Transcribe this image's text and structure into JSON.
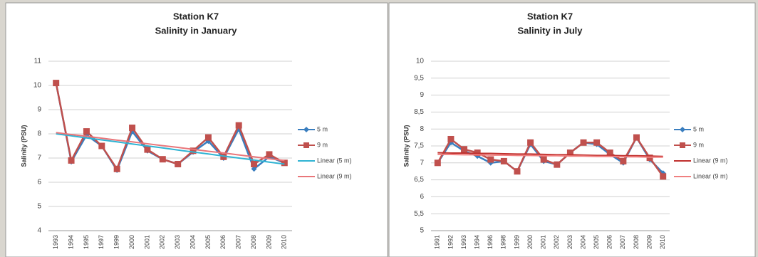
{
  "chart_data": [
    {
      "type": "line",
      "title": "Station K7",
      "subtitle": "Salinity in January",
      "y_label": "Salinity (PSU)",
      "categories": [
        "1993",
        "1994",
        "1995",
        "1997",
        "1999",
        "2000",
        "2001",
        "2002",
        "2003",
        "2004",
        "2005",
        "2006",
        "2007",
        "2008",
        "2009",
        "2010"
      ],
      "ylim": [
        4,
        11
      ],
      "yticks": [
        4,
        5,
        6,
        7,
        8,
        9,
        10,
        11
      ],
      "grid": true,
      "series": [
        {
          "name": "5 m",
          "color": "#3a7ebf",
          "marker": "diamond",
          "values": [
            10.1,
            6.85,
            7.95,
            7.5,
            6.5,
            8.1,
            7.3,
            6.95,
            6.75,
            7.25,
            7.7,
            7.0,
            8.2,
            6.55,
            7.05,
            6.8
          ]
        },
        {
          "name": "9 m",
          "color": "#c0504d",
          "marker": "square",
          "values": [
            10.1,
            6.9,
            8.1,
            7.5,
            6.55,
            8.25,
            7.35,
            6.95,
            6.75,
            7.3,
            7.85,
            7.05,
            8.35,
            6.75,
            7.15,
            6.8
          ]
        },
        {
          "name": "Linear (5 m)",
          "color": "#2fb3d3",
          "values": [
            8.0,
            7.92,
            7.83,
            7.75,
            7.67,
            7.58,
            7.5,
            7.42,
            7.33,
            7.25,
            7.17,
            7.08,
            7.0,
            6.92,
            6.83,
            6.75
          ]
        },
        {
          "name": "Linear (9 m)",
          "color": "#e9767a",
          "values": [
            8.05,
            7.97,
            7.9,
            7.82,
            7.74,
            7.67,
            7.59,
            7.51,
            7.44,
            7.36,
            7.28,
            7.21,
            7.13,
            7.05,
            6.97,
            6.9
          ]
        }
      ]
    },
    {
      "type": "line",
      "title": "Station K7",
      "subtitle": "Salinity in July",
      "y_label": "Salinity (PSU)",
      "categories": [
        "1991",
        "1992",
        "1993",
        "1994",
        "1996",
        "1998",
        "1999",
        "2000",
        "2001",
        "2002",
        "2003",
        "2004",
        "2005",
        "2006",
        "2007",
        "2008",
        "2009",
        "2010"
      ],
      "ylim": [
        5,
        10
      ],
      "yticks": [
        5,
        {
          "value": 5.5,
          "label": "5,5"
        },
        6,
        {
          "value": 6.5,
          "label": "6,5"
        },
        7,
        {
          "value": 7.5,
          "label": "7,5"
        },
        8,
        {
          "value": 8.5,
          "label": "8,5"
        },
        9,
        {
          "value": 9.5,
          "label": "9,5"
        },
        10
      ],
      "grid": true,
      "series": [
        {
          "name": "5 m",
          "color": "#3a7ebf",
          "marker": "diamond",
          "values": [
            7.0,
            7.6,
            7.35,
            7.2,
            7.0,
            7.05,
            6.75,
            7.55,
            7.05,
            6.95,
            7.3,
            7.6,
            7.55,
            7.25,
            7.0,
            7.75,
            7.1,
            6.7
          ]
        },
        {
          "name": "9 m",
          "color": "#c0504d",
          "marker": "square",
          "values": [
            7.0,
            7.7,
            7.4,
            7.3,
            7.1,
            7.05,
            6.75,
            7.6,
            7.1,
            6.95,
            7.3,
            7.6,
            7.6,
            7.3,
            7.05,
            7.75,
            7.15,
            6.6
          ]
        },
        {
          "name": "Linear (9 m)",
          "color": "#c0302d",
          "values": [
            7.3,
            7.29,
            7.29,
            7.28,
            7.28,
            7.27,
            7.26,
            7.26,
            7.25,
            7.24,
            7.24,
            7.23,
            7.22,
            7.22,
            7.21,
            7.21,
            7.2,
            7.19
          ]
        },
        {
          "name": "Linear (9 m)",
          "color": "#f08080",
          "values": [
            7.25,
            7.25,
            7.24,
            7.24,
            7.23,
            7.23,
            7.22,
            7.22,
            7.21,
            7.21,
            7.2,
            7.2,
            7.19,
            7.19,
            7.18,
            7.18,
            7.17,
            7.17
          ]
        }
      ]
    }
  ]
}
